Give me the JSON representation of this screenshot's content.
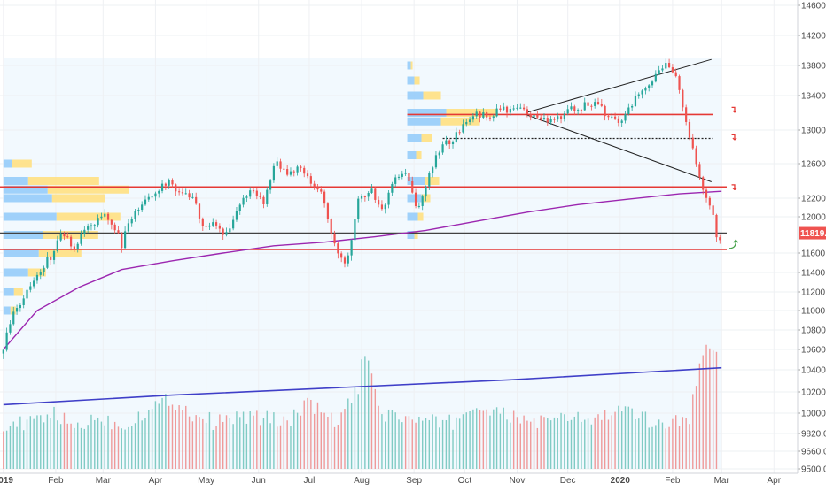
{
  "chart_data": {
    "type": "candlestick",
    "title": "",
    "xlabel": "",
    "ylabel": "",
    "ylim": [
      9500,
      14700
    ],
    "y_ticks": [
      "14600.0",
      "14200.0",
      "13800.0",
      "13400.0",
      "13000.0",
      "12600.0",
      "12200.0",
      "12000.0",
      "11600.0",
      "11400.0",
      "11200.0",
      "11000.0",
      "10800.0",
      "10600.0",
      "10400.0",
      "10200.0",
      "10000.0",
      "9820.0",
      "9660.0",
      "9500.0"
    ],
    "y_tick_values": [
      14600,
      14200,
      13800,
      13400,
      13000,
      12600,
      12200,
      12000,
      11600,
      11400,
      11200,
      11000,
      10800,
      10600,
      10400,
      10200,
      10000,
      9820,
      9660,
      9500
    ],
    "x_ticks": [
      "2019",
      "Feb",
      "Mar",
      "Apr",
      "May",
      "Jun",
      "Jul",
      "Aug",
      "Sep",
      "Oct",
      "Nov",
      "Dec",
      "2020",
      "Feb",
      "Mar",
      "Apr"
    ],
    "x_tick_days": [
      0,
      31,
      59,
      90,
      120,
      151,
      181,
      212,
      243,
      273,
      304,
      334,
      365,
      396,
      425,
      456
    ],
    "last_price": {
      "label": "11819.0",
      "value": 11819
    },
    "colors": {
      "up": "#26a69a",
      "down": "#ef5350",
      "ma_short": "#9c27b0",
      "ma_long": "#3f3fc8",
      "level": "#e53935",
      "level_dark": "#424242",
      "volume_up": "#80cbc4",
      "volume_down": "#ef9a9a",
      "profile_blue": "#90caf9",
      "profile_yellow": "#ffe082",
      "background_zone": "#e3f2fd"
    },
    "horizontal_levels": [
      {
        "value": 13180,
        "style": "solid",
        "color": "#e53935"
      },
      {
        "value": 12900,
        "style": "dotted",
        "color": "#212121"
      },
      {
        "value": 12330,
        "style": "solid",
        "color": "#e53935"
      },
      {
        "value": 11819,
        "style": "solid",
        "color": "#424242"
      },
      {
        "value": 11640,
        "style": "solid",
        "color": "#e53935"
      }
    ],
    "triangle": {
      "upper": [
        {
          "day": 309,
          "value": 13200
        },
        {
          "day": 419,
          "value": 13880
        }
      ],
      "lower": [
        {
          "day": 309,
          "value": 13180
        },
        {
          "day": 419,
          "value": 12390
        }
      ]
    },
    "ma_short": {
      "days": [
        0,
        20,
        45,
        70,
        100,
        130,
        160,
        190,
        220,
        250,
        280,
        310,
        340,
        370,
        400,
        425
      ],
      "values": [
        10600,
        11000,
        11250,
        11430,
        11520,
        11600,
        11680,
        11720,
        11780,
        11850,
        11950,
        12050,
        12130,
        12190,
        12250,
        12280
      ]
    },
    "ma_long": {
      "days": [
        0,
        100,
        200,
        300,
        425
      ],
      "values": [
        10080,
        10170,
        10240,
        10310,
        10420
      ]
    },
    "series": [
      {
        "name": "",
        "days": [
          0,
          7,
          14,
          21,
          28,
          35,
          42,
          49,
          56,
          63,
          70,
          77,
          84,
          91,
          98,
          105,
          112,
          119,
          126,
          133,
          140,
          147,
          154,
          161,
          168,
          175,
          182,
          189,
          196,
          203,
          210,
          217,
          224,
          231,
          238,
          245,
          252,
          259,
          266,
          273,
          280,
          287,
          294,
          301,
          308,
          315,
          322,
          329,
          336,
          343,
          350,
          357,
          364,
          371,
          378,
          385,
          392,
          399,
          406,
          413,
          420,
          423,
          425
        ],
        "close": [
          10640,
          11000,
          11180,
          11400,
          11560,
          11820,
          11650,
          11880,
          11980,
          12000,
          11700,
          12050,
          12150,
          12300,
          12420,
          12250,
          12180,
          11900,
          11920,
          11780,
          12150,
          12300,
          12150,
          12630,
          12440,
          12600,
          12370,
          12240,
          11700,
          11480,
          12200,
          12300,
          12050,
          12440,
          12480,
          12030,
          12510,
          12800,
          12900,
          13050,
          13200,
          13150,
          13230,
          13250,
          13210,
          13120,
          13100,
          13160,
          13240,
          13280,
          13320,
          13180,
          13090,
          13250,
          13500,
          13620,
          13790,
          13600,
          12900,
          12380,
          12040,
          11700,
          11819
        ]
      }
    ],
    "volume": {
      "days": [
        0,
        14,
        28,
        42,
        56,
        70,
        84,
        98,
        112,
        126,
        140,
        154,
        168,
        182,
        196,
        210,
        213,
        224,
        238,
        252,
        266,
        280,
        294,
        308,
        322,
        336,
        350,
        364,
        378,
        392,
        406,
        414,
        419,
        423
      ],
      "values": [
        9900,
        9880,
        9990,
        9860,
        9950,
        9870,
        10000,
        10120,
        9980,
        9900,
        9960,
        9940,
        9920,
        10080,
        9890,
        10200,
        10560,
        9980,
        9940,
        9900,
        9910,
        10050,
        9970,
        9930,
        9900,
        9950,
        9920,
        10010,
        9940,
        9890,
        9960,
        10560,
        10600,
        10580
      ]
    },
    "volume_profiles": [
      {
        "day_start": 0,
        "bins": [
          {
            "value": 12600,
            "blue": 10,
            "yellow": 22
          },
          {
            "value": 12400,
            "blue": 28,
            "yellow": 80
          },
          {
            "value": 12300,
            "blue": 50,
            "yellow": 92
          },
          {
            "value": 12200,
            "blue": 55,
            "yellow": 60
          },
          {
            "value": 12000,
            "blue": 60,
            "yellow": 72
          },
          {
            "value": 11800,
            "blue": 45,
            "yellow": 62
          },
          {
            "value": 11600,
            "blue": 40,
            "yellow": 48
          },
          {
            "value": 11400,
            "blue": 28,
            "yellow": 20
          },
          {
            "value": 11200,
            "blue": 12,
            "yellow": 10
          },
          {
            "value": 11000,
            "blue": 8,
            "yellow": 6
          }
        ]
      },
      {
        "day_start": 239,
        "bins": [
          {
            "value": 13800,
            "blue": 4,
            "yellow": 2
          },
          {
            "value": 13600,
            "blue": 8,
            "yellow": 6
          },
          {
            "value": 13400,
            "blue": 18,
            "yellow": 20
          },
          {
            "value": 13200,
            "blue": 44,
            "yellow": 56
          },
          {
            "value": 13100,
            "blue": 38,
            "yellow": 44
          },
          {
            "value": 12900,
            "blue": 16,
            "yellow": 12
          },
          {
            "value": 12700,
            "blue": 10,
            "yellow": 6
          },
          {
            "value": 12400,
            "blue": 20,
            "yellow": 16
          },
          {
            "value": 12200,
            "blue": 16,
            "yellow": 10
          },
          {
            "value": 12000,
            "blue": 12,
            "yellow": 6
          },
          {
            "value": 11800,
            "blue": 8,
            "yellow": 4
          }
        ]
      }
    ],
    "markers": [
      {
        "day": 432,
        "value": 13200,
        "symbol": "↴",
        "color": "#e53935"
      },
      {
        "day": 432,
        "value": 12880,
        "symbol": "↴",
        "color": "#e53935"
      },
      {
        "day": 432,
        "value": 12290,
        "symbol": "↴",
        "color": "#e53935"
      },
      {
        "day": 432,
        "value": 11660,
        "symbol": "⤴",
        "color": "#43a047"
      }
    ]
  }
}
